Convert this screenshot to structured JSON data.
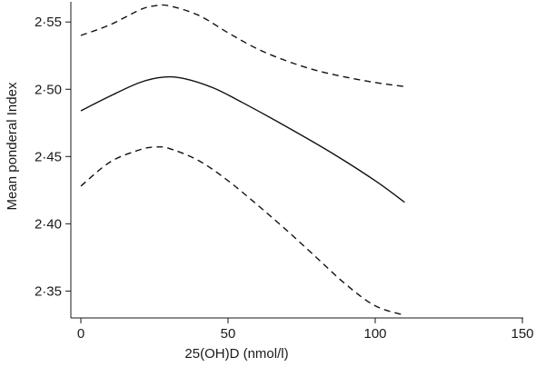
{
  "chart_data": {
    "type": "line",
    "title": "",
    "xlabel": "25(OH)D (nmol/l)",
    "ylabel": "Mean ponderal Index",
    "xlim": [
      0,
      150
    ],
    "ylim": [
      2.33,
      2.565
    ],
    "xticks": [
      0,
      50,
      100,
      150
    ],
    "xtick_labels": [
      "0",
      "50",
      "100",
      "150"
    ],
    "yticks": [
      2.35,
      2.4,
      2.45,
      2.5,
      2.55
    ],
    "ytick_labels": [
      "2·35",
      "2·40",
      "2·45",
      "2·50",
      "2·55"
    ],
    "grid": false,
    "legend": "none",
    "series": [
      {
        "style": "dashed",
        "x": [
          0,
          10,
          20,
          25,
          30,
          40,
          50,
          60,
          70,
          80,
          90,
          100,
          110
        ],
        "y": [
          2.54,
          2.548,
          2.559,
          2.562,
          2.562,
          2.555,
          2.542,
          2.53,
          2.521,
          2.514,
          2.509,
          2.505,
          2.502
        ]
      },
      {
        "style": "solid",
        "x": [
          0,
          10,
          20,
          28,
          35,
          45,
          55,
          70,
          85,
          100,
          110
        ],
        "y": [
          2.484,
          2.495,
          2.505,
          2.509,
          2.508,
          2.501,
          2.49,
          2.472,
          2.453,
          2.432,
          2.416
        ]
      },
      {
        "style": "dashed",
        "x": [
          0,
          10,
          20,
          25,
          30,
          40,
          50,
          60,
          70,
          80,
          90,
          100,
          110
        ],
        "y": [
          2.428,
          2.446,
          2.455,
          2.457,
          2.456,
          2.447,
          2.432,
          2.414,
          2.395,
          2.375,
          2.355,
          2.339,
          2.332
        ]
      }
    ]
  }
}
